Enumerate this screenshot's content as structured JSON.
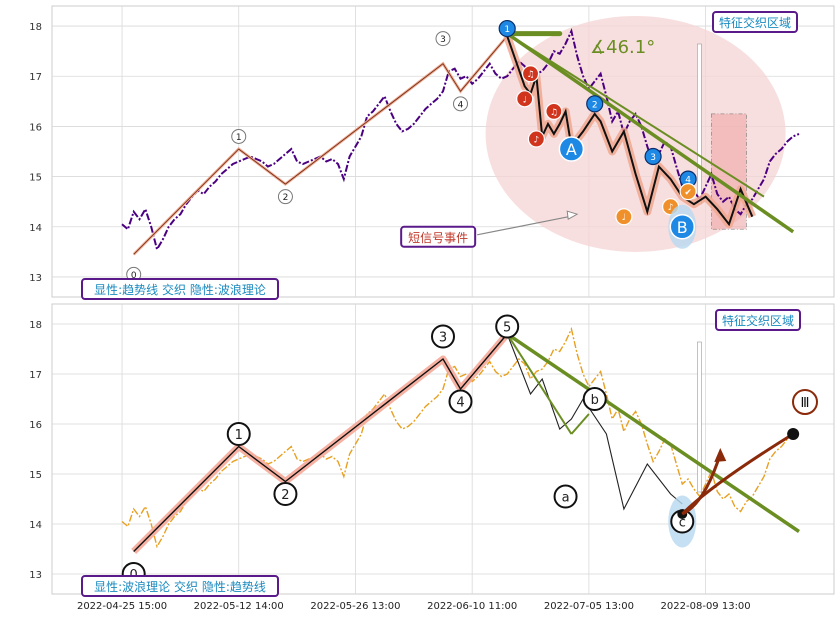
{
  "chart_data": [
    {
      "type": "line",
      "panel": "top",
      "ylim": [
        12.6,
        18.4
      ],
      "yticks": [
        13,
        14,
        15,
        16,
        17,
        18
      ],
      "grid": true,
      "price_series": {
        "style": "dash-dot",
        "color": "#4b0082",
        "points": [
          [
            0.0,
            14.05
          ],
          [
            0.5,
            13.95
          ],
          [
            1.0,
            14.3
          ],
          [
            1.5,
            14.15
          ],
          [
            2.0,
            14.35
          ],
          [
            2.5,
            14.0
          ],
          [
            3.0,
            13.55
          ],
          [
            3.5,
            13.75
          ],
          [
            4.0,
            14.0
          ],
          [
            4.5,
            14.15
          ],
          [
            5.0,
            14.25
          ],
          [
            5.5,
            14.45
          ],
          [
            6.0,
            14.6
          ],
          [
            6.5,
            14.72
          ],
          [
            7.0,
            14.65
          ],
          [
            7.5,
            14.8
          ],
          [
            8.0,
            14.9
          ],
          [
            8.5,
            15.05
          ],
          [
            9.0,
            15.15
          ],
          [
            9.5,
            15.25
          ],
          [
            10.0,
            15.3
          ],
          [
            10.5,
            15.35
          ],
          [
            11.0,
            15.4
          ],
          [
            11.5,
            15.35
          ],
          [
            12.0,
            15.3
          ],
          [
            12.5,
            15.2
          ],
          [
            13.0,
            15.25
          ],
          [
            13.5,
            15.35
          ],
          [
            14.0,
            15.45
          ],
          [
            14.5,
            15.55
          ],
          [
            15.0,
            15.3
          ],
          [
            15.5,
            15.25
          ],
          [
            16.0,
            15.3
          ],
          [
            16.5,
            15.35
          ],
          [
            17.0,
            15.4
          ],
          [
            17.5,
            15.3
          ],
          [
            18.0,
            15.35
          ],
          [
            18.5,
            15.25
          ],
          [
            19.0,
            14.95
          ],
          [
            19.5,
            15.4
          ],
          [
            20.0,
            15.6
          ],
          [
            20.5,
            15.8
          ],
          [
            21.0,
            16.2
          ],
          [
            21.5,
            16.3
          ],
          [
            22.0,
            16.45
          ],
          [
            22.5,
            16.6
          ],
          [
            23.0,
            16.3
          ],
          [
            23.5,
            16.05
          ],
          [
            24.0,
            15.9
          ],
          [
            24.5,
            15.95
          ],
          [
            25.0,
            16.05
          ],
          [
            25.5,
            16.2
          ],
          [
            26.0,
            16.35
          ],
          [
            26.5,
            16.45
          ],
          [
            27.0,
            16.55
          ],
          [
            27.5,
            16.7
          ],
          [
            28.0,
            17.1
          ],
          [
            28.5,
            17.15
          ],
          [
            29.0,
            16.95
          ],
          [
            29.5,
            17.0
          ],
          [
            30.0,
            16.85
          ],
          [
            30.5,
            16.95
          ],
          [
            31.0,
            17.1
          ],
          [
            31.5,
            17.25
          ],
          [
            32.0,
            17.05
          ],
          [
            32.5,
            16.95
          ],
          [
            33.0,
            17.0
          ],
          [
            33.5,
            17.15
          ],
          [
            34.0,
            17.3
          ],
          [
            34.5,
            17.2
          ],
          [
            35.0,
            16.9
          ],
          [
            35.5,
            17.05
          ],
          [
            36.0,
            17.1
          ],
          [
            36.5,
            17.25
          ],
          [
            37.0,
            17.5
          ],
          [
            37.5,
            17.45
          ],
          [
            38.0,
            17.65
          ],
          [
            38.5,
            17.9
          ],
          [
            39.0,
            17.4
          ],
          [
            39.5,
            17.0
          ],
          [
            40.0,
            16.75
          ],
          [
            40.5,
            16.9
          ],
          [
            41.0,
            17.05
          ],
          [
            41.5,
            16.6
          ],
          [
            42.0,
            16.1
          ],
          [
            42.5,
            16.3
          ],
          [
            43.0,
            15.85
          ],
          [
            43.5,
            16.1
          ],
          [
            44.0,
            16.25
          ],
          [
            44.5,
            16.0
          ],
          [
            45.0,
            15.6
          ],
          [
            45.5,
            15.25
          ],
          [
            46.0,
            15.45
          ],
          [
            46.5,
            15.7
          ],
          [
            47.0,
            15.6
          ],
          [
            47.5,
            15.2
          ],
          [
            48.0,
            14.8
          ],
          [
            48.5,
            14.9
          ],
          [
            49.0,
            14.7
          ],
          [
            49.5,
            14.55
          ],
          [
            50.0,
            14.8
          ],
          [
            50.5,
            15.05
          ],
          [
            51.0,
            14.65
          ],
          [
            51.5,
            14.5
          ],
          [
            52.0,
            14.6
          ],
          [
            52.5,
            14.35
          ],
          [
            53.0,
            14.25
          ],
          [
            53.5,
            14.45
          ],
          [
            54.0,
            14.55
          ],
          [
            54.5,
            14.75
          ],
          [
            55.0,
            14.95
          ],
          [
            55.5,
            15.3
          ],
          [
            56.0,
            15.45
          ],
          [
            56.5,
            15.55
          ],
          [
            57.0,
            15.7
          ],
          [
            57.5,
            15.8
          ],
          [
            58.0,
            15.85
          ]
        ]
      },
      "wave_points": [
        {
          "x": 1.0,
          "y": 13.45,
          "label": "0"
        },
        {
          "x": 10.0,
          "y": 15.55,
          "label": "1"
        },
        {
          "x": 14.0,
          "y": 14.85,
          "label": "2"
        },
        {
          "x": 27.5,
          "y": 17.25,
          "label": "3"
        },
        {
          "x": 29.0,
          "y": 16.7,
          "label": "4"
        },
        {
          "x": 33.0,
          "y": 17.8,
          "label": "5"
        }
      ],
      "wave_label_offsets": [
        {
          "label": "0",
          "y": 13.05
        },
        {
          "label": "1",
          "y": 15.8
        },
        {
          "label": "2",
          "y": 14.6
        },
        {
          "label": "3",
          "y": 17.75
        },
        {
          "label": "4",
          "y": 16.45
        },
        {
          "label": "5",
          "y": 17.95
        }
      ],
      "wave_line_color": "#f5b5a5",
      "trendlines": [
        {
          "from": [
            33.0,
            17.85
          ],
          "to": [
            57.5,
            13.9
          ],
          "color": "#6b8e23"
        },
        {
          "from": [
            33.0,
            17.85
          ],
          "to": [
            55.0,
            14.6
          ],
          "color": "#6b8e23"
        }
      ],
      "angle_marker": {
        "text": "∡46.1°",
        "color": "#6b8e23",
        "bar_from": [
          33.0,
          17.85
        ],
        "bar_to": [
          37.5,
          17.85
        ]
      },
      "zigzag_down": [
        [
          33.0,
          17.8
        ],
        [
          34.5,
          16.8
        ],
        [
          35.0,
          16.65
        ],
        [
          35.5,
          17.0
        ],
        [
          36.0,
          15.8
        ],
        [
          36.5,
          16.05
        ],
        [
          37.0,
          15.85
        ],
        [
          37.5,
          16.05
        ],
        [
          38.0,
          16.3
        ],
        [
          38.5,
          15.6
        ],
        [
          39.5,
          15.9
        ],
        [
          40.5,
          16.25
        ],
        [
          41.0,
          16.1
        ],
        [
          42.0,
          15.5
        ],
        [
          43.0,
          15.9
        ],
        [
          44.0,
          15.05
        ],
        [
          45.0,
          14.3
        ],
        [
          46.0,
          15.2
        ],
        [
          47.0,
          14.95
        ],
        [
          48.0,
          14.6
        ],
        [
          49.0,
          14.45
        ],
        [
          50.0,
          14.6
        ],
        [
          51.0,
          14.35
        ],
        [
          52.0,
          14.05
        ],
        [
          53.0,
          14.75
        ],
        [
          54.0,
          14.2
        ]
      ],
      "markers": [
        {
          "x": 33.0,
          "y": 17.95,
          "color": "#1e88e5",
          "label": "1"
        },
        {
          "x": 40.5,
          "y": 16.45,
          "color": "#1e88e5",
          "label": "2"
        },
        {
          "x": 45.5,
          "y": 15.4,
          "color": "#1e88e5",
          "label": "3"
        },
        {
          "x": 48.5,
          "y": 14.95,
          "color": "#1e88e5",
          "label": "4"
        },
        {
          "x": 34.5,
          "y": 16.55,
          "color": "#d0341d",
          "label": "♩"
        },
        {
          "x": 35.0,
          "y": 17.05,
          "color": "#d0341d",
          "label": "♫"
        },
        {
          "x": 35.5,
          "y": 15.75,
          "color": "#d0341d",
          "label": "♪"
        },
        {
          "x": 37.0,
          "y": 16.3,
          "color": "#d0341d",
          "label": "♫"
        },
        {
          "x": 43.0,
          "y": 14.2,
          "color": "#f0902a",
          "label": "♩"
        },
        {
          "x": 47.0,
          "y": 14.4,
          "color": "#f0902a",
          "label": "♪"
        },
        {
          "x": 48.5,
          "y": 14.7,
          "color": "#f0902a",
          "label": "✔"
        }
      ],
      "big_labels": [
        {
          "x": 38.5,
          "y": 15.55,
          "text": "A",
          "color": "#1e88e5"
        },
        {
          "x": 48.0,
          "y": 14.0,
          "text": "B",
          "color": "#1e88e5"
        }
      ],
      "event_label": {
        "text": "短信号事件",
        "x": 27.0,
        "y": 13.8,
        "arrow_to": [
          39.0,
          14.25
        ]
      },
      "region_label": "特征交织区域",
      "legend_label": "显性:趋势线 交织 隐性:波浪理论"
    },
    {
      "type": "line",
      "panel": "bottom",
      "ylim": [
        12.6,
        18.4
      ],
      "yticks": [
        13,
        14,
        15,
        16,
        17,
        18
      ],
      "grid": true,
      "price_series": {
        "style": "dash-dot",
        "color": "#e8a020",
        "same_as_top": true
      },
      "wave_points": [
        {
          "x": 1.0,
          "y": 13.45,
          "label": "0"
        },
        {
          "x": 10.0,
          "y": 15.55,
          "label": "1"
        },
        {
          "x": 14.0,
          "y": 14.85,
          "label": "2"
        },
        {
          "x": 27.5,
          "y": 17.3,
          "label": "3"
        },
        {
          "x": 29.0,
          "y": 16.7,
          "label": "4"
        },
        {
          "x": 33.0,
          "y": 17.8,
          "label": "5"
        }
      ],
      "wave_label_offsets": [
        {
          "label": "0",
          "y": 13.0
        },
        {
          "label": "1",
          "y": 15.8
        },
        {
          "label": "2",
          "y": 14.6
        },
        {
          "label": "3",
          "y": 17.75
        },
        {
          "label": "4",
          "y": 16.45
        },
        {
          "label": "5",
          "y": 17.95
        }
      ],
      "correction_labels": [
        {
          "x": 38.0,
          "y": 14.55,
          "label": "a"
        },
        {
          "x": 40.5,
          "y": 16.5,
          "label": "b"
        },
        {
          "x": 48.0,
          "y": 14.05,
          "label": "c"
        }
      ],
      "trendlines": [
        {
          "from": [
            33.0,
            17.8
          ],
          "to": [
            58.0,
            13.85
          ],
          "color": "#6b8e23"
        },
        {
          "from": [
            33.0,
            17.8
          ],
          "to": [
            56.5,
            14.1
          ],
          "color": "#6b8e23"
        },
        {
          "from": [
            33.0,
            17.8
          ],
          "to": [
            38.5,
            15.8
          ],
          "color": "#6b8e23"
        },
        {
          "from": [
            38.5,
            15.8
          ],
          "to": [
            40.0,
            16.2
          ],
          "color": "#6b8e23"
        }
      ],
      "forecast_arrow": {
        "from": [
          48.0,
          14.2
        ],
        "to": [
          57.5,
          15.8
        ],
        "color": "#8b2a0a",
        "label": "Ⅲ"
      },
      "region_label": "特征交织区域",
      "legend_label": "显性:波浪理论 交织 隐性:趋势线"
    }
  ],
  "x_axis": {
    "labels": [
      "2022-04-25 15:00",
      "2022-05-12 14:00",
      "2022-05-26 13:00",
      "2022-06-10 11:00",
      "2022-07-05 13:00",
      "2022-08-09 13:00"
    ],
    "label_positions": [
      0,
      10,
      20,
      30,
      40,
      50
    ],
    "xlim": [
      -6.0,
      61.0
    ]
  },
  "colors": {
    "frame": "#cccccc",
    "grid": "#d9d9d9",
    "label_box_border": "#5a1a8a",
    "label_text": "#1a8ac0",
    "highlight_ellipse": "#f6d4d4",
    "event_text": "#c0392b"
  }
}
